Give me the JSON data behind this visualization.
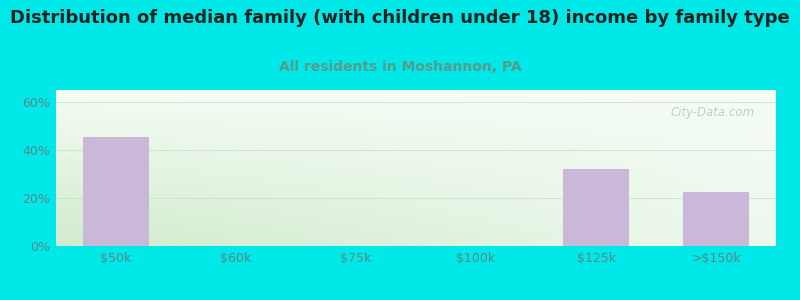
{
  "title": "Distribution of median family (with children under 18) income by family type",
  "subtitle": "All residents in Moshannon, PA",
  "categories": [
    "$50k",
    "$60k",
    "$75k",
    "$100k",
    "$125k",
    ">$150k"
  ],
  "values": [
    45.5,
    0,
    0,
    0,
    32.0,
    22.5
  ],
  "bar_color": "#c9b8d8",
  "title_fontsize": 13,
  "subtitle_fontsize": 10,
  "subtitle_color": "#5a9a8a",
  "outer_bg_color": "#00e8e8",
  "yticks": [
    0,
    20,
    40,
    60
  ],
  "ylim": [
    0,
    65
  ],
  "watermark": "City-Data.com",
  "watermark_color": "#b0c8c8",
  "tick_color": "#5a8888"
}
